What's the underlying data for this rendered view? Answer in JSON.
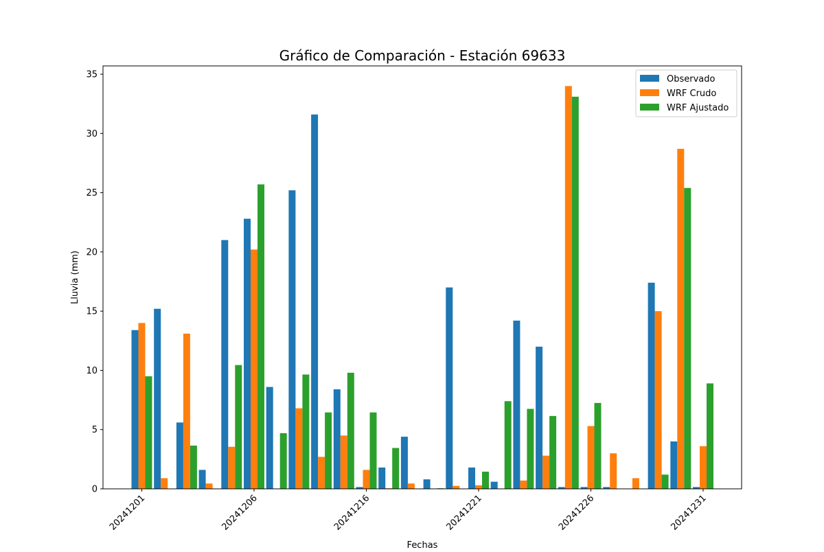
{
  "chart_data": {
    "type": "bar",
    "title": "Gráfico de Comparación - Estación 69633",
    "xlabel": "Fechas",
    "ylabel": "Lluvia (mm)",
    "ylim": [
      0,
      35.7
    ],
    "yticks": [
      0,
      5,
      10,
      15,
      20,
      25,
      30,
      35
    ],
    "xticks": [
      {
        "label": "20241201",
        "index": 0
      },
      {
        "label": "20241206",
        "index": 5
      },
      {
        "label": "20241216",
        "index": 10
      },
      {
        "label": "20241221",
        "index": 15
      },
      {
        "label": "20241226",
        "index": 20
      },
      {
        "label": "20241231",
        "index": 25
      }
    ],
    "legend_position": "top-right",
    "grid": false,
    "series": [
      {
        "name": "Observado",
        "color": "#1f77b4",
        "values": [
          13.4,
          15.2,
          5.6,
          1.6,
          21.0,
          22.8,
          8.6,
          25.2,
          31.6,
          8.4,
          0.15,
          1.8,
          4.4,
          0.8,
          17.0,
          1.8,
          0.6,
          14.2,
          12.0,
          0.15,
          0.15,
          0.15,
          0.0,
          17.4,
          4.0,
          0.15
        ]
      },
      {
        "name": "WRF Crudo",
        "color": "#ff7f0e",
        "values": [
          14.0,
          0.9,
          13.1,
          0.45,
          3.55,
          20.2,
          0.0,
          6.8,
          2.7,
          4.5,
          1.6,
          0.05,
          0.45,
          0.0,
          0.25,
          0.3,
          0.0,
          0.7,
          2.8,
          34.0,
          5.3,
          3.0,
          0.9,
          15.0,
          28.7,
          3.6
        ]
      },
      {
        "name": "WRF Ajustado",
        "color": "#2ca02c",
        "values": [
          9.5,
          0.0,
          3.65,
          0.0,
          10.45,
          25.7,
          4.7,
          9.65,
          6.45,
          9.8,
          6.45,
          3.45,
          0.0,
          0.05,
          0.0,
          1.45,
          7.4,
          6.75,
          6.15,
          33.1,
          7.25,
          0.0,
          0.0,
          1.2,
          25.4,
          8.9
        ]
      }
    ]
  }
}
